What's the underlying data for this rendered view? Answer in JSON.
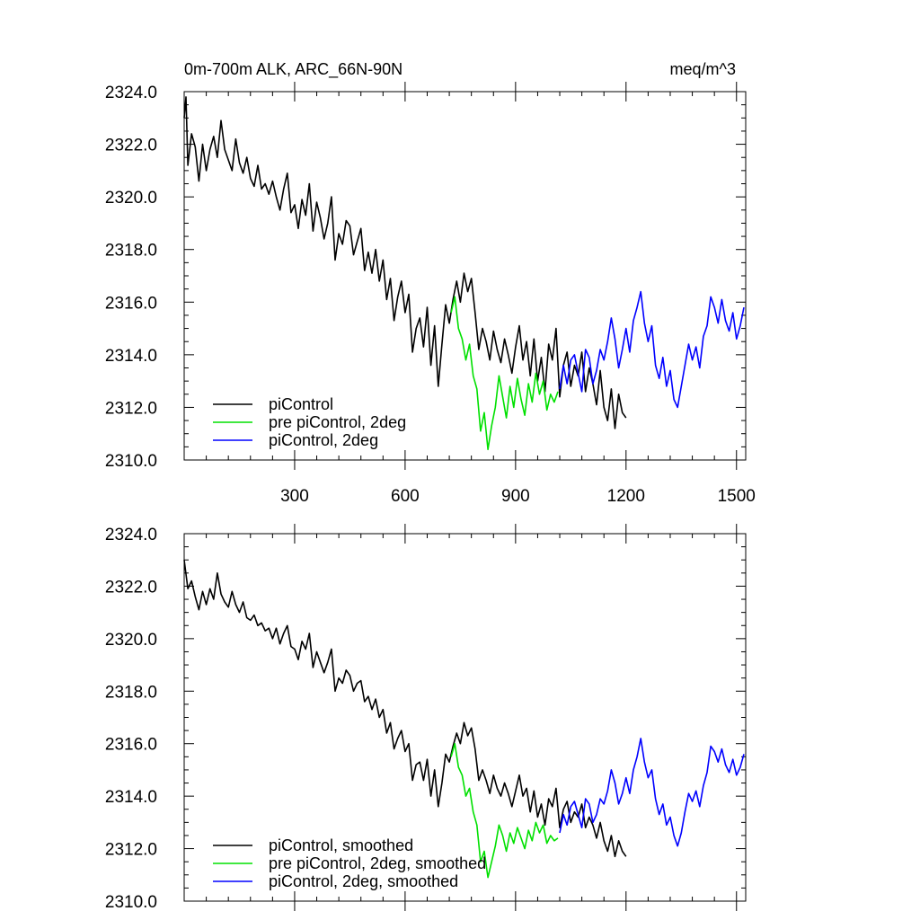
{
  "colors": {
    "piControl": "#000000",
    "pre_piControl_2deg": "#00e000",
    "piControl_2deg": "#0000ff"
  },
  "chart_data": [
    {
      "type": "line",
      "title": "0m-700m ALK, ARC_66N-90N",
      "units": "meq/m^3",
      "xlim": [
        0,
        1525
      ],
      "ylim": [
        2310.0,
        2324.0
      ],
      "yticks": [
        "2310.0",
        "2312.0",
        "2314.0",
        "2316.0",
        "2318.0",
        "2320.0",
        "2322.0",
        "2324.0"
      ],
      "xticks": [
        "300",
        "600",
        "900",
        "1200",
        "1500"
      ],
      "legend_position": "bottom-left",
      "series": [
        {
          "name": "piControl",
          "color_key": "piControl",
          "x": [
            0,
            5,
            10,
            20,
            30,
            40,
            50,
            60,
            70,
            80,
            90,
            100,
            110,
            120,
            130,
            140,
            150,
            160,
            170,
            180,
            190,
            200,
            210,
            220,
            230,
            240,
            250,
            260,
            270,
            280,
            290,
            300,
            310,
            320,
            330,
            340,
            350,
            360,
            370,
            380,
            390,
            400,
            410,
            420,
            430,
            440,
            450,
            460,
            470,
            480,
            490,
            500,
            510,
            520,
            530,
            540,
            550,
            560,
            570,
            580,
            590,
            600,
            610,
            620,
            630,
            640,
            650,
            660,
            670,
            680,
            690,
            700,
            710,
            720,
            730,
            740,
            750,
            760,
            770,
            780,
            790,
            800,
            810,
            820,
            830,
            840,
            850,
            860,
            870,
            880,
            890,
            900,
            910,
            920,
            930,
            940,
            950,
            960,
            970,
            980,
            990,
            1000,
            1010,
            1020,
            1030,
            1040,
            1050,
            1060,
            1070,
            1080,
            1090,
            1100,
            1110,
            1120,
            1130,
            1140,
            1150,
            1160,
            1170,
            1180,
            1190,
            1200
          ],
          "y": [
            2323.0,
            2323.8,
            2321.2,
            2322.4,
            2321.9,
            2320.6,
            2322.0,
            2321.0,
            2321.8,
            2322.3,
            2321.5,
            2322.9,
            2321.8,
            2321.4,
            2321.0,
            2322.2,
            2321.3,
            2320.9,
            2321.5,
            2320.7,
            2320.4,
            2321.2,
            2320.3,
            2320.5,
            2320.1,
            2320.6,
            2320.0,
            2319.5,
            2320.3,
            2320.9,
            2319.4,
            2319.7,
            2318.8,
            2319.9,
            2319.3,
            2320.5,
            2318.7,
            2319.8,
            2319.2,
            2318.4,
            2319.0,
            2320.0,
            2317.6,
            2318.6,
            2318.2,
            2319.1,
            2318.9,
            2317.8,
            2318.3,
            2318.8,
            2317.2,
            2317.9,
            2317.1,
            2318.0,
            2316.8,
            2317.6,
            2316.1,
            2316.9,
            2315.3,
            2316.2,
            2316.8,
            2315.6,
            2316.3,
            2314.1,
            2315.0,
            2315.4,
            2314.3,
            2315.8,
            2313.6,
            2315.1,
            2312.8,
            2314.4,
            2315.9,
            2315.2,
            2316.1,
            2316.8,
            2316.0,
            2317.1,
            2316.4,
            2316.9,
            2315.6,
            2314.2,
            2315.0,
            2314.5,
            2313.8,
            2314.9,
            2314.2,
            2313.7,
            2314.6,
            2314.0,
            2313.3,
            2314.3,
            2315.1,
            2313.8,
            2314.5,
            2313.2,
            2314.6,
            2313.0,
            2313.9,
            2312.6,
            2314.4,
            2313.8,
            2315.0,
            2312.4,
            2313.6,
            2314.1,
            2312.8,
            2313.6,
            2313.2,
            2314.1,
            2312.6,
            2313.5,
            2312.9,
            2312.1,
            2313.4,
            2312.0,
            2311.5,
            2312.7,
            2311.2,
            2312.5,
            2311.8,
            2311.6
          ]
        },
        {
          "name": "pre piControl, 2deg",
          "color_key": "pre_piControl_2deg",
          "x": [
            725,
            735,
            745,
            755,
            765,
            775,
            785,
            795,
            805,
            815,
            825,
            835,
            845,
            855,
            865,
            875,
            885,
            895,
            905,
            915,
            925,
            935,
            945,
            955,
            965,
            975,
            985,
            995,
            1005,
            1015
          ],
          "y": [
            2315.6,
            2316.2,
            2315.0,
            2314.6,
            2313.8,
            2314.4,
            2313.2,
            2312.7,
            2311.1,
            2311.8,
            2310.4,
            2311.3,
            2312.0,
            2313.2,
            2312.4,
            2311.6,
            2312.8,
            2312.0,
            2313.1,
            2312.3,
            2311.7,
            2312.9,
            2312.2,
            2313.3,
            2312.5,
            2313.0,
            2311.9,
            2312.5,
            2312.2,
            2312.6
          ]
        },
        {
          "name": "piControl, 2deg",
          "color_key": "piControl_2deg",
          "x": [
            1020,
            1030,
            1040,
            1050,
            1060,
            1070,
            1080,
            1090,
            1100,
            1110,
            1120,
            1130,
            1140,
            1150,
            1160,
            1170,
            1180,
            1190,
            1200,
            1210,
            1220,
            1230,
            1240,
            1250,
            1260,
            1270,
            1280,
            1290,
            1300,
            1310,
            1320,
            1330,
            1340,
            1350,
            1360,
            1370,
            1380,
            1390,
            1400,
            1410,
            1420,
            1430,
            1440,
            1450,
            1460,
            1470,
            1480,
            1490,
            1500,
            1510,
            1520
          ],
          "y": [
            2312.7,
            2313.6,
            2312.9,
            2313.8,
            2314.0,
            2313.3,
            2312.6,
            2314.2,
            2313.9,
            2312.9,
            2313.4,
            2314.2,
            2313.8,
            2314.5,
            2315.4,
            2314.6,
            2313.5,
            2314.2,
            2315.0,
            2314.1,
            2315.3,
            2315.8,
            2316.4,
            2315.2,
            2314.5,
            2315.1,
            2313.6,
            2313.1,
            2313.9,
            2312.8,
            2313.4,
            2312.3,
            2312.0,
            2312.8,
            2313.6,
            2314.4,
            2313.8,
            2314.3,
            2313.5,
            2314.7,
            2315.1,
            2316.2,
            2315.8,
            2315.2,
            2316.1,
            2315.3,
            2314.9,
            2315.6,
            2314.6,
            2315.1,
            2315.8
          ]
        }
      ]
    },
    {
      "type": "line",
      "xlim": [
        0,
        1525
      ],
      "ylim": [
        2310.0,
        2324.0
      ],
      "yticks": [
        "2310.0",
        "2312.0",
        "2314.0",
        "2316.0",
        "2318.0",
        "2320.0",
        "2322.0",
        "2324.0"
      ],
      "legend_position": "bottom-left",
      "series": [
        {
          "name": "piControl, smoothed",
          "color_key": "piControl",
          "x": [
            0,
            10,
            20,
            30,
            40,
            50,
            60,
            70,
            80,
            90,
            100,
            110,
            120,
            130,
            140,
            150,
            160,
            170,
            180,
            190,
            200,
            210,
            220,
            230,
            240,
            250,
            260,
            270,
            280,
            290,
            300,
            310,
            320,
            330,
            340,
            350,
            360,
            370,
            380,
            390,
            400,
            410,
            420,
            430,
            440,
            450,
            460,
            470,
            480,
            490,
            500,
            510,
            520,
            530,
            540,
            550,
            560,
            570,
            580,
            590,
            600,
            610,
            620,
            630,
            640,
            650,
            660,
            670,
            680,
            690,
            700,
            710,
            720,
            730,
            740,
            750,
            760,
            770,
            780,
            790,
            800,
            810,
            820,
            830,
            840,
            850,
            860,
            870,
            880,
            890,
            900,
            910,
            920,
            930,
            940,
            950,
            960,
            970,
            980,
            990,
            1000,
            1010,
            1020,
            1030,
            1040,
            1050,
            1060,
            1070,
            1080,
            1090,
            1100,
            1110,
            1120,
            1130,
            1140,
            1150,
            1160,
            1170,
            1180,
            1190,
            1200
          ],
          "y": [
            2323.0,
            2321.9,
            2322.2,
            2321.6,
            2321.1,
            2321.8,
            2321.3,
            2321.9,
            2321.5,
            2322.5,
            2321.7,
            2321.4,
            2321.2,
            2321.8,
            2321.3,
            2321.0,
            2321.4,
            2320.8,
            2320.7,
            2320.9,
            2320.5,
            2320.6,
            2320.3,
            2320.4,
            2320.0,
            2320.4,
            2319.8,
            2320.2,
            2320.5,
            2319.7,
            2319.6,
            2319.2,
            2319.9,
            2319.6,
            2320.2,
            2318.9,
            2319.5,
            2319.1,
            2318.7,
            2319.1,
            2319.6,
            2318.0,
            2318.5,
            2318.3,
            2318.8,
            2318.6,
            2318.0,
            2318.3,
            2318.4,
            2317.6,
            2317.8,
            2317.3,
            2317.7,
            2317.0,
            2317.3,
            2316.4,
            2316.8,
            2315.8,
            2316.2,
            2316.5,
            2315.7,
            2316.0,
            2314.6,
            2315.2,
            2315.3,
            2314.6,
            2315.4,
            2314.0,
            2315.0,
            2313.6,
            2314.5,
            2315.6,
            2315.3,
            2315.9,
            2316.4,
            2316.0,
            2316.8,
            2316.3,
            2316.6,
            2315.8,
            2314.6,
            2315.0,
            2314.6,
            2314.1,
            2314.8,
            2314.3,
            2314.0,
            2314.5,
            2314.1,
            2313.6,
            2314.2,
            2314.8,
            2314.0,
            2314.3,
            2313.4,
            2314.2,
            2313.2,
            2313.7,
            2312.9,
            2313.9,
            2313.6,
            2314.3,
            2312.8,
            2313.5,
            2313.8,
            2313.0,
            2313.4,
            2313.2,
            2313.7,
            2312.8,
            2313.2,
            2312.9,
            2312.4,
            2313.0,
            2312.3,
            2311.9,
            2312.5,
            2311.7,
            2312.3,
            2311.9,
            2311.7
          ]
        },
        {
          "name": "pre piControl, 2deg, smoothed",
          "color_key": "pre_piControl_2deg",
          "x": [
            725,
            735,
            745,
            755,
            765,
            775,
            785,
            795,
            805,
            815,
            825,
            835,
            845,
            855,
            865,
            875,
            885,
            895,
            905,
            915,
            925,
            935,
            945,
            955,
            965,
            975,
            985,
            995,
            1005,
            1015
          ],
          "y": [
            2315.5,
            2316.0,
            2315.1,
            2314.8,
            2314.0,
            2314.3,
            2313.4,
            2312.9,
            2311.5,
            2311.9,
            2310.9,
            2311.5,
            2312.1,
            2312.9,
            2312.5,
            2311.9,
            2312.6,
            2312.2,
            2312.8,
            2312.4,
            2312.0,
            2312.7,
            2312.3,
            2313.0,
            2312.6,
            2312.9,
            2312.2,
            2312.5,
            2312.3,
            2312.4
          ]
        },
        {
          "name": "piControl, 2deg, smoothed",
          "color_key": "piControl_2deg",
          "x": [
            1020,
            1030,
            1040,
            1050,
            1060,
            1070,
            1080,
            1090,
            1100,
            1110,
            1120,
            1130,
            1140,
            1150,
            1160,
            1170,
            1180,
            1190,
            1200,
            1210,
            1220,
            1230,
            1240,
            1250,
            1260,
            1270,
            1280,
            1290,
            1300,
            1310,
            1320,
            1330,
            1340,
            1350,
            1360,
            1370,
            1380,
            1390,
            1400,
            1410,
            1420,
            1430,
            1440,
            1450,
            1460,
            1470,
            1480,
            1490,
            1500,
            1510,
            1520
          ],
          "y": [
            2312.6,
            2313.3,
            2312.9,
            2313.6,
            2313.8,
            2313.3,
            2312.8,
            2313.9,
            2313.7,
            2313.0,
            2313.3,
            2313.9,
            2313.7,
            2314.2,
            2315.0,
            2314.5,
            2313.7,
            2314.1,
            2314.7,
            2314.1,
            2315.0,
            2315.5,
            2316.2,
            2315.3,
            2314.7,
            2315.0,
            2313.9,
            2313.3,
            2313.7,
            2312.9,
            2313.2,
            2312.5,
            2312.1,
            2312.6,
            2313.4,
            2314.1,
            2313.8,
            2314.2,
            2313.6,
            2314.4,
            2314.9,
            2315.9,
            2315.7,
            2315.3,
            2315.8,
            2315.2,
            2314.9,
            2315.4,
            2314.8,
            2315.1,
            2315.6
          ]
        }
      ]
    }
  ]
}
